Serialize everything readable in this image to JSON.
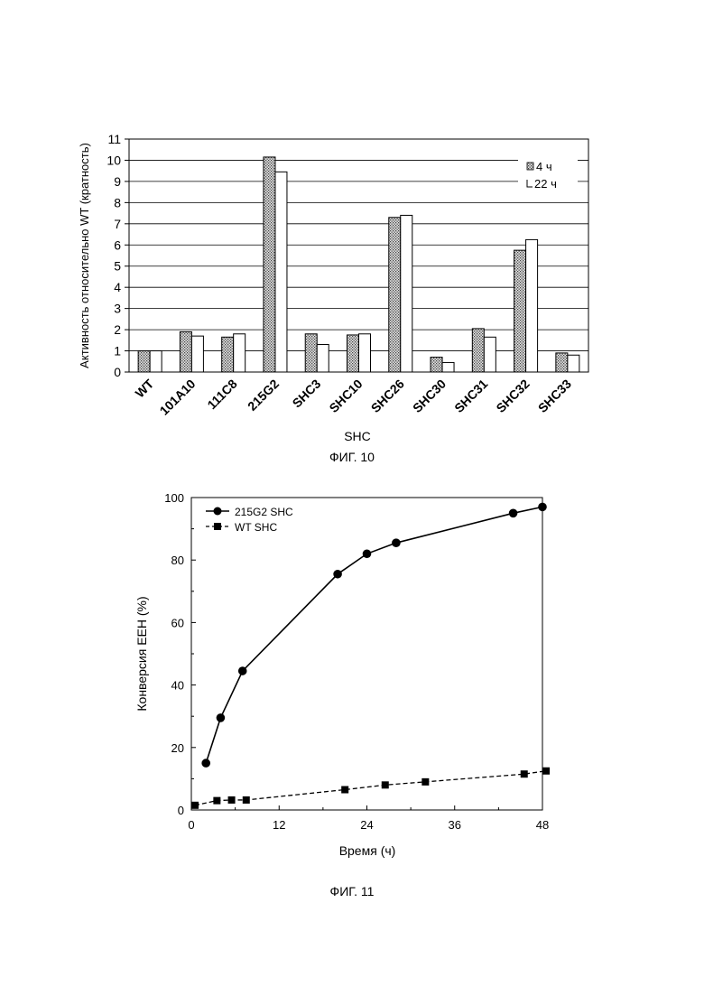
{
  "chart_data": [
    {
      "type": "bar",
      "xlabel": "SHC",
      "ylabel": "Активность относительно WT (кратность)",
      "caption": "ФИГ. 10",
      "ylim": [
        0,
        11
      ],
      "yticks": [
        "0",
        "1",
        "2",
        "3",
        "4",
        "5",
        "6",
        "7",
        "8",
        "9",
        "10",
        "11"
      ],
      "grid": true,
      "legend_position": "top-right",
      "categories": [
        "WT",
        "101A10",
        "111C8",
        "215G2",
        "SHC3",
        "SHC10",
        "SHC26",
        "SHC30",
        "SHC31",
        "SHC32",
        "SHC33"
      ],
      "series": [
        {
          "name": "4 ч",
          "values": [
            1.0,
            1.9,
            1.65,
            10.15,
            1.8,
            1.75,
            7.3,
            0.7,
            2.05,
            5.75,
            0.9
          ],
          "pattern": "dotted"
        },
        {
          "name": "22 ч",
          "values": [
            1.0,
            1.7,
            1.8,
            9.45,
            1.3,
            1.8,
            7.4,
            0.45,
            1.65,
            6.25,
            0.8
          ],
          "pattern": "white"
        }
      ]
    },
    {
      "type": "line",
      "xlabel": "Время (ч)",
      "ylabel": "Конверсия EEH (%)",
      "caption": "ФИГ. 11",
      "xlim": [
        0,
        48
      ],
      "ylim": [
        0,
        100
      ],
      "xticks": [
        "0",
        "12",
        "24",
        "36",
        "48"
      ],
      "yticks": [
        "0",
        "20",
        "40",
        "60",
        "80",
        "100"
      ],
      "legend_position": "top-left",
      "series": [
        {
          "name": "215G2 SHC",
          "marker": "circle",
          "line": "solid",
          "x": [
            2,
            4,
            7,
            20,
            24,
            28,
            44,
            48
          ],
          "y": [
            15,
            29.5,
            44.5,
            75.5,
            82,
            85.5,
            95,
            97
          ]
        },
        {
          "name": "WT SHC",
          "marker": "square",
          "line": "dashed",
          "x": [
            0.5,
            3.5,
            5.5,
            7.5,
            21,
            26.5,
            32,
            45.5,
            48.5
          ],
          "y": [
            1.5,
            3,
            3.2,
            3.2,
            6.5,
            8,
            9,
            11.5,
            12.5
          ]
        }
      ]
    }
  ]
}
